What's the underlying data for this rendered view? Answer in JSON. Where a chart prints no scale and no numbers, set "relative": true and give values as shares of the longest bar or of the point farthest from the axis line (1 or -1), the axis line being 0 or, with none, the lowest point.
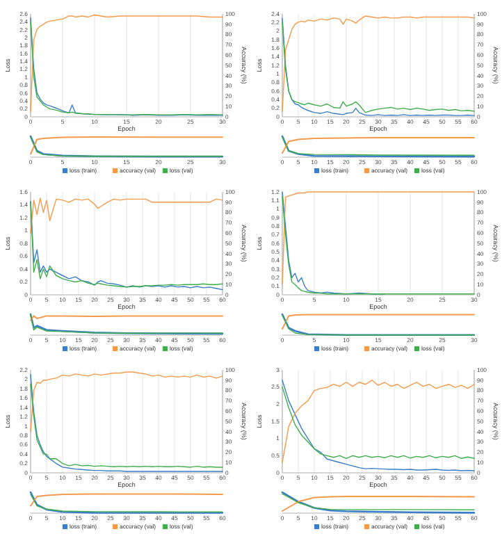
{
  "chart_data": [
    {
      "type": "line",
      "xlabel": "Epoch",
      "ylabel": "Loss",
      "y2label": "Accuracy (%)",
      "grid": "x",
      "legend": "bottom",
      "xlim": [
        0,
        30
      ],
      "xticks": [
        0,
        5,
        10,
        15,
        20,
        25,
        30
      ],
      "ylim": [
        0,
        2.6
      ],
      "yticks": [
        0,
        0.2,
        0.4,
        0.6,
        0.8,
        1,
        1.2,
        1.4,
        1.6,
        1.8,
        2,
        2.2,
        2.4,
        2.6
      ],
      "y2lim": [
        0,
        100
      ],
      "y2ticks": [
        0,
        10,
        20,
        30,
        40,
        50,
        60,
        70,
        80,
        90,
        100
      ],
      "x": [
        0,
        0.5,
        1,
        1.5,
        2,
        2.5,
        3,
        4,
        5,
        6,
        6.5,
        7,
        8,
        9,
        10,
        12,
        14,
        16,
        18,
        20,
        22,
        24,
        26,
        28,
        30
      ],
      "series": [
        {
          "name": "loss (train)",
          "color": "#3a7dc9",
          "values": [
            2.5,
            1.2,
            0.6,
            0.45,
            0.35,
            0.3,
            0.28,
            0.22,
            0.15,
            0.1,
            0.3,
            0.1,
            0.08,
            0.07,
            0.06,
            0.05,
            0.06,
            0.04,
            0.05,
            0.04,
            0.04,
            0.05,
            0.04,
            0.04,
            0.04
          ]
        },
        {
          "name": "accuracy (val)",
          "color": "#f59a4b",
          "axis": "y2",
          "values": [
            5,
            75,
            85,
            88,
            90,
            92,
            93,
            94,
            95,
            98,
            98,
            97,
            98,
            97,
            99,
            97,
            98,
            98,
            98,
            98,
            98,
            98,
            98,
            97,
            97
          ]
        },
        {
          "name": "loss (val)",
          "color": "#3fae4a",
          "values": [
            2.4,
            1.0,
            0.5,
            0.4,
            0.3,
            0.25,
            0.2,
            0.17,
            0.12,
            0.1,
            0.12,
            0.09,
            0.08,
            0.07,
            0.06,
            0.06,
            0.05,
            0.05,
            0.06,
            0.05,
            0.05,
            0.06,
            0.05,
            0.06,
            0.05
          ]
        }
      ]
    },
    {
      "type": "line",
      "relative": true,
      "tick_labels": "x",
      "xlim": [
        0,
        30
      ],
      "xticks": [
        0,
        5,
        10,
        15,
        20,
        25,
        30
      ],
      "x": [
        0,
        1,
        2,
        5,
        10,
        20,
        30
      ],
      "series": [
        {
          "color": "#3a7dc9",
          "values": [
            1,
            0.3,
            0.15,
            0.07,
            0.04,
            0.03,
            0.03
          ]
        },
        {
          "color": "#f59a4b",
          "values": [
            0.15,
            0.85,
            0.9,
            0.95,
            0.97,
            0.96,
            0.96
          ]
        },
        {
          "color": "#3fae4a",
          "values": [
            0.95,
            0.25,
            0.12,
            0.06,
            0.04,
            0.04,
            0.04
          ]
        }
      ]
    },
    {
      "type": "line",
      "xlabel": "Epoch",
      "ylabel": "Loss",
      "y2label": "Accuracy (%)",
      "grid": "x",
      "legend": "bottom",
      "xlim": [
        0,
        60
      ],
      "xticks": [
        0,
        5,
        10,
        15,
        20,
        25,
        30,
        35,
        40,
        45,
        50,
        55,
        60
      ],
      "ylim": [
        0,
        2.4
      ],
      "yticks": [
        0,
        0.2,
        0.4,
        0.6,
        0.8,
        1,
        1.2,
        1.4,
        1.6,
        1.8,
        2,
        2.2,
        2.4
      ],
      "y2lim": [
        0,
        100
      ],
      "y2ticks": [
        0,
        10,
        20,
        30,
        40,
        50,
        60,
        70,
        80,
        90,
        100
      ],
      "x": [
        0,
        1,
        2,
        3,
        4,
        5,
        6,
        7,
        8,
        10,
        12,
        14,
        16,
        18,
        19,
        20,
        22,
        23,
        24,
        26,
        28,
        30,
        32,
        34,
        36,
        38,
        40,
        42,
        44,
        46,
        48,
        50,
        52,
        54,
        56,
        58,
        60
      ],
      "series": [
        {
          "name": "loss (train)",
          "color": "#3a7dc9",
          "values": [
            2.3,
            1.2,
            0.6,
            0.4,
            0.3,
            0.28,
            0.22,
            0.18,
            0.15,
            0.1,
            0.08,
            0.12,
            0.08,
            0.06,
            0.05,
            0.08,
            0.1,
            0.2,
            0.1,
            0.04,
            0.03,
            0.05,
            0.03,
            0.04,
            0.03,
            0.05,
            0.03,
            0.04,
            0.03,
            0.04,
            0.03,
            0.04,
            0.04,
            0.03,
            0.03,
            0.04,
            0.03
          ]
        },
        {
          "name": "accuracy (val)",
          "color": "#f59a4b",
          "axis": "y2",
          "values": [
            5,
            65,
            75,
            85,
            90,
            92,
            93,
            92,
            94,
            93,
            95,
            94,
            96,
            95,
            90,
            95,
            93,
            91,
            94,
            98,
            97,
            96,
            97,
            96,
            96,
            97,
            97,
            96,
            97,
            97,
            97,
            97,
            97,
            97,
            97,
            97,
            96
          ]
        },
        {
          "name": "loss (val)",
          "color": "#3fae4a",
          "values": [
            2.2,
            1.1,
            0.6,
            0.4,
            0.35,
            0.33,
            0.3,
            0.28,
            0.32,
            0.28,
            0.25,
            0.3,
            0.22,
            0.2,
            0.35,
            0.25,
            0.3,
            0.35,
            0.28,
            0.1,
            0.15,
            0.18,
            0.2,
            0.22,
            0.18,
            0.2,
            0.17,
            0.2,
            0.18,
            0.15,
            0.17,
            0.18,
            0.15,
            0.17,
            0.14,
            0.15,
            0.13
          ]
        }
      ]
    },
    {
      "type": "line",
      "relative": true,
      "tick_labels": "x",
      "xlim": [
        0,
        60
      ],
      "xticks": [
        0,
        5,
        10,
        15,
        20,
        25,
        30,
        35,
        40,
        45,
        50,
        55,
        60
      ],
      "x": [
        0,
        2,
        5,
        10,
        20,
        30,
        60
      ],
      "series": [
        {
          "color": "#3a7dc9",
          "values": [
            1,
            0.3,
            0.15,
            0.06,
            0.05,
            0.04,
            0.03
          ]
        },
        {
          "color": "#f59a4b",
          "values": [
            0.2,
            0.75,
            0.85,
            0.9,
            0.92,
            0.93,
            0.93
          ]
        },
        {
          "color": "#3fae4a",
          "values": [
            0.95,
            0.3,
            0.17,
            0.13,
            0.12,
            0.1,
            0.09
          ]
        }
      ]
    },
    {
      "type": "line",
      "xlabel": "Epoch",
      "ylabel": "Loss",
      "y2label": "Accuracy (%)",
      "grid": "x",
      "legend": "bottom",
      "xlim": [
        0,
        60
      ],
      "xticks": [
        0,
        5,
        10,
        15,
        20,
        25,
        30,
        35,
        40,
        45,
        50,
        55,
        60
      ],
      "ylim": [
        0,
        1.6
      ],
      "yticks": [
        0,
        0.2,
        0.4,
        0.6,
        0.8,
        1,
        1.2,
        1.4,
        1.6
      ],
      "y2lim": [
        0,
        100
      ],
      "y2ticks": [
        0,
        10,
        20,
        30,
        40,
        50,
        60,
        70,
        80,
        90,
        100
      ],
      "x": [
        0,
        1,
        2,
        3,
        4,
        5,
        6,
        8,
        10,
        12,
        14,
        16,
        18,
        20,
        21,
        22,
        24,
        26,
        28,
        30,
        32,
        34,
        36,
        38,
        40,
        42,
        44,
        46,
        48,
        50,
        52,
        54,
        56,
        58,
        60
      ],
      "series": [
        {
          "name": "loss (train)",
          "color": "#3a7dc9",
          "values": [
            1.45,
            0.5,
            0.7,
            0.35,
            0.45,
            0.35,
            0.4,
            0.35,
            0.3,
            0.25,
            0.28,
            0.22,
            0.2,
            0.15,
            0.2,
            0.22,
            0.18,
            0.17,
            0.15,
            0.12,
            0.14,
            0.12,
            0.14,
            0.13,
            0.14,
            0.12,
            0.14,
            0.12,
            0.13,
            0.11,
            0.13,
            0.11,
            0.12,
            0.1,
            0.08
          ]
        },
        {
          "name": "accuracy (val)",
          "color": "#f59a4b",
          "axis": "y2",
          "values": [
            60,
            92,
            78,
            94,
            80,
            92,
            72,
            93,
            92,
            90,
            93,
            92,
            93,
            88,
            84,
            86,
            90,
            93,
            92,
            93,
            93,
            93,
            93,
            90,
            90,
            90,
            90,
            90,
            90,
            90,
            90,
            90,
            90,
            93,
            92
          ]
        },
        {
          "name": "loss (val)",
          "color": "#3fae4a",
          "values": [
            1.45,
            0.35,
            0.55,
            0.25,
            0.4,
            0.28,
            0.45,
            0.3,
            0.25,
            0.22,
            0.2,
            0.22,
            0.18,
            0.16,
            0.18,
            0.17,
            0.15,
            0.14,
            0.13,
            0.12,
            0.13,
            0.13,
            0.14,
            0.14,
            0.15,
            0.15,
            0.16,
            0.15,
            0.16,
            0.16,
            0.16,
            0.17,
            0.16,
            0.16,
            0.17
          ]
        }
      ]
    },
    {
      "type": "line",
      "relative": true,
      "tick_labels": "x",
      "xlim": [
        0,
        60
      ],
      "xticks": [
        0,
        5,
        10,
        15,
        20,
        25,
        30,
        35,
        40,
        45,
        50,
        55,
        60
      ],
      "x": [
        0,
        1,
        2,
        5,
        10,
        20,
        30,
        60
      ],
      "series": [
        {
          "color": "#3a7dc9",
          "values": [
            1,
            0.35,
            0.45,
            0.25,
            0.2,
            0.12,
            0.09,
            0.07
          ]
        },
        {
          "color": "#f59a4b",
          "values": [
            0.7,
            0.92,
            0.8,
            0.92,
            0.92,
            0.9,
            0.92,
            0.92
          ]
        },
        {
          "color": "#3fae4a",
          "values": [
            1,
            0.25,
            0.38,
            0.2,
            0.17,
            0.11,
            0.09,
            0.1
          ]
        }
      ]
    },
    {
      "type": "line",
      "xlabel": "Epoch",
      "ylabel": "Loss",
      "y2label": "Accuracy (%)",
      "grid": "x",
      "legend": "bottom",
      "xlim": [
        0,
        30
      ],
      "xticks": [
        0,
        5,
        10,
        15,
        20,
        25,
        30
      ],
      "ylim": [
        0,
        1.2
      ],
      "yticks": [
        0,
        0.1,
        0.2,
        0.3,
        0.4,
        0.5,
        0.6,
        0.7,
        0.8,
        0.9,
        1,
        1.1,
        1.2
      ],
      "y2lim": [
        0,
        100
      ],
      "y2ticks": [
        0,
        10,
        20,
        30,
        40,
        50,
        60,
        70,
        80,
        90,
        100
      ],
      "x": [
        0,
        0.5,
        1,
        1.5,
        2,
        2.5,
        3,
        3.5,
        4,
        5,
        6,
        7,
        8,
        10,
        12,
        14,
        16,
        18,
        20,
        22,
        24,
        26,
        28,
        30
      ],
      "series": [
        {
          "name": "loss (train)",
          "color": "#3a7dc9",
          "values": [
            1.2,
            0.8,
            0.4,
            0.2,
            0.25,
            0.15,
            0.2,
            0.1,
            0.05,
            0.03,
            0.02,
            0.03,
            0.02,
            0.01,
            0.02,
            0.01,
            0.01,
            null,
            null,
            null,
            null,
            null,
            null,
            null
          ]
        },
        {
          "name": "accuracy (val)",
          "color": "#f59a4b",
          "axis": "y2",
          "values": [
            10,
            95,
            96,
            97,
            98,
            99,
            99,
            99,
            100,
            100,
            100,
            100,
            100,
            100,
            100,
            100,
            100,
            100,
            100,
            100,
            100,
            100,
            100,
            100
          ]
        },
        {
          "name": "loss (val)",
          "color": "#3fae4a",
          "values": [
            1.15,
            0.7,
            0.35,
            0.15,
            0.12,
            0.08,
            0.05,
            0.04,
            0.03,
            0.02,
            0.02,
            0.01,
            0.01,
            0.01,
            0.01,
            0.01,
            0.01,
            0.01,
            0.01,
            0.01,
            0.01,
            0.01,
            0.01,
            0.01
          ]
        }
      ]
    },
    {
      "type": "line",
      "relative": true,
      "tick_labels": "x",
      "xlim": [
        0,
        30
      ],
      "xticks": [
        0,
        5,
        10,
        15,
        20,
        25,
        30
      ],
      "x": [
        0,
        1,
        2,
        4,
        10,
        20,
        30
      ],
      "series": [
        {
          "color": "#3a7dc9",
          "values": [
            1,
            0.35,
            0.2,
            0.04,
            0.01,
            0.01,
            0.01
          ]
        },
        {
          "color": "#f59a4b",
          "values": [
            0.3,
            0.92,
            0.97,
            0.98,
            0.98,
            0.98,
            0.98
          ]
        },
        {
          "color": "#3fae4a",
          "values": [
            0.95,
            0.3,
            0.1,
            0.03,
            0.01,
            0.01,
            0.01
          ]
        }
      ]
    },
    {
      "type": "line",
      "xlabel": "Epoch",
      "ylabel": "Loss",
      "y2label": "Accuracy (%)",
      "grid": "x",
      "legend": "bottom",
      "xlim": [
        0,
        60
      ],
      "xticks": [
        0,
        5,
        10,
        15,
        20,
        25,
        30,
        35,
        40,
        45,
        50,
        55,
        60
      ],
      "ylim": [
        0,
        2.2
      ],
      "yticks": [
        0,
        0.2,
        0.4,
        0.6,
        0.8,
        1,
        1.2,
        1.4,
        1.6,
        1.8,
        2,
        2.2
      ],
      "y2lim": [
        0,
        100
      ],
      "y2ticks": [
        0,
        10,
        20,
        30,
        40,
        50,
        60,
        70,
        80,
        90,
        100
      ],
      "x": [
        0,
        1,
        2,
        3,
        4,
        5,
        6,
        8,
        10,
        12,
        14,
        16,
        18,
        20,
        22,
        24,
        26,
        28,
        30,
        32,
        34,
        36,
        38,
        40,
        42,
        44,
        46,
        48,
        50,
        52,
        54,
        56,
        58,
        60
      ],
      "series": [
        {
          "name": "loss (train)",
          "color": "#3a7dc9",
          "values": [
            2.1,
            1.3,
            0.8,
            0.6,
            0.45,
            0.35,
            0.3,
            0.2,
            0.12,
            0.1,
            0.08,
            0.07,
            0.06,
            0.05,
            0.05,
            0.04,
            0.04,
            0.04,
            0.03,
            0.03,
            0.03,
            0.03,
            0.03,
            0.03,
            0.03,
            0.03,
            0.03,
            0.03,
            0.03,
            0.03,
            0.03,
            0.03,
            0.03,
            0.03
          ]
        },
        {
          "name": "accuracy (val)",
          "color": "#f59a4b",
          "axis": "y2",
          "values": [
            40,
            80,
            88,
            87,
            90,
            90,
            91,
            92,
            95,
            94,
            96,
            95,
            94,
            96,
            95,
            96,
            97,
            97,
            98,
            98,
            97,
            96,
            94,
            95,
            93,
            94,
            93,
            94,
            93,
            95,
            93,
            94,
            92,
            94
          ]
        },
        {
          "name": "loss (val)",
          "color": "#3fae4a",
          "values": [
            1.9,
            1.2,
            0.7,
            0.55,
            0.4,
            0.4,
            0.3,
            0.3,
            0.2,
            0.15,
            0.18,
            0.15,
            0.16,
            0.14,
            0.15,
            0.14,
            0.13,
            0.14,
            0.13,
            0.14,
            0.13,
            0.14,
            0.13,
            0.14,
            0.13,
            0.13,
            0.14,
            0.13,
            0.12,
            0.14,
            0.12,
            0.13,
            0.12,
            0.12
          ]
        }
      ]
    },
    {
      "type": "line",
      "relative": true,
      "tick_labels": "x",
      "xlim": [
        0,
        60
      ],
      "xticks": [
        0,
        5,
        10,
        15,
        20,
        25,
        30,
        35,
        40,
        45,
        50,
        55,
        60
      ],
      "x": [
        0,
        2,
        5,
        10,
        20,
        40,
        60
      ],
      "series": [
        {
          "color": "#3a7dc9",
          "values": [
            1,
            0.4,
            0.17,
            0.06,
            0.02,
            0.015,
            0.015
          ]
        },
        {
          "color": "#f59a4b",
          "values": [
            0.35,
            0.8,
            0.85,
            0.9,
            0.92,
            0.92,
            0.9
          ]
        },
        {
          "color": "#3fae4a",
          "values": [
            0.9,
            0.35,
            0.19,
            0.1,
            0.07,
            0.065,
            0.06
          ]
        }
      ]
    },
    {
      "type": "line",
      "xlabel": "Epoch",
      "ylabel": "Loss",
      "y2label": "Accuracy (%)",
      "grid": "x",
      "legend": "bottom",
      "xlim": [
        0,
        60
      ],
      "xticks": [
        0,
        5,
        10,
        15,
        20,
        25,
        30,
        35,
        40,
        45,
        50,
        55,
        60
      ],
      "ylim": [
        0,
        3
      ],
      "yticks": [
        0,
        0.5,
        1,
        1.5,
        2,
        2.5,
        3
      ],
      "y2lim": [
        0,
        100
      ],
      "y2ticks": [
        0,
        10,
        20,
        30,
        40,
        50,
        60,
        70,
        80,
        90,
        100
      ],
      "x": [
        0,
        2,
        4,
        6,
        8,
        10,
        12,
        14,
        16,
        18,
        20,
        22,
        24,
        26,
        28,
        30,
        32,
        34,
        36,
        38,
        40,
        42,
        44,
        46,
        48,
        50,
        52,
        54,
        56,
        58,
        60
      ],
      "series": [
        {
          "name": "loss (train)",
          "color": "#3a7dc9",
          "values": [
            2.7,
            2.1,
            1.7,
            1.3,
            1.0,
            0.7,
            0.6,
            0.4,
            0.35,
            0.3,
            0.25,
            0.2,
            0.15,
            0.12,
            0.13,
            0.12,
            0.11,
            0.1,
            0.1,
            0.09,
            0.1,
            0.08,
            0.08,
            0.09,
            0.1,
            0.08,
            0.07,
            0.08,
            0.06,
            0.07,
            0.06
          ]
        },
        {
          "name": "accuracy (val)",
          "color": "#f59a4b",
          "axis": "y2",
          "values": [
            10,
            45,
            58,
            65,
            70,
            80,
            82,
            83,
            86,
            84,
            88,
            84,
            88,
            86,
            90,
            85,
            88,
            84,
            86,
            82,
            85,
            88,
            84,
            86,
            82,
            84,
            86,
            83,
            85,
            82,
            86
          ]
        },
        {
          "name": "loss (val)",
          "color": "#3fae4a",
          "values": [
            2.5,
            1.9,
            1.4,
            1.1,
            0.9,
            0.7,
            0.55,
            0.5,
            0.45,
            0.5,
            0.42,
            0.5,
            0.45,
            0.5,
            0.45,
            0.48,
            0.44,
            0.5,
            0.45,
            0.5,
            0.43,
            0.48,
            0.45,
            0.5,
            0.44,
            0.48,
            0.45,
            0.5,
            0.42,
            0.46,
            0.42
          ]
        }
      ]
    },
    {
      "type": "line",
      "relative": true,
      "tick_labels": "x",
      "xlim": [
        0,
        60
      ],
      "xticks": [
        0,
        5,
        10,
        15,
        20,
        25,
        30,
        35,
        40,
        45,
        50,
        55,
        60
      ],
      "x": [
        0,
        5,
        10,
        15,
        20,
        40,
        60
      ],
      "series": [
        {
          "color": "#3a7dc9",
          "values": [
            1,
            0.55,
            0.25,
            0.13,
            0.09,
            0.04,
            0.02
          ]
        },
        {
          "color": "#f59a4b",
          "values": [
            0.1,
            0.55,
            0.75,
            0.78,
            0.8,
            0.8,
            0.78
          ]
        },
        {
          "color": "#3fae4a",
          "values": [
            0.93,
            0.5,
            0.26,
            0.18,
            0.17,
            0.17,
            0.16
          ]
        }
      ]
    }
  ]
}
